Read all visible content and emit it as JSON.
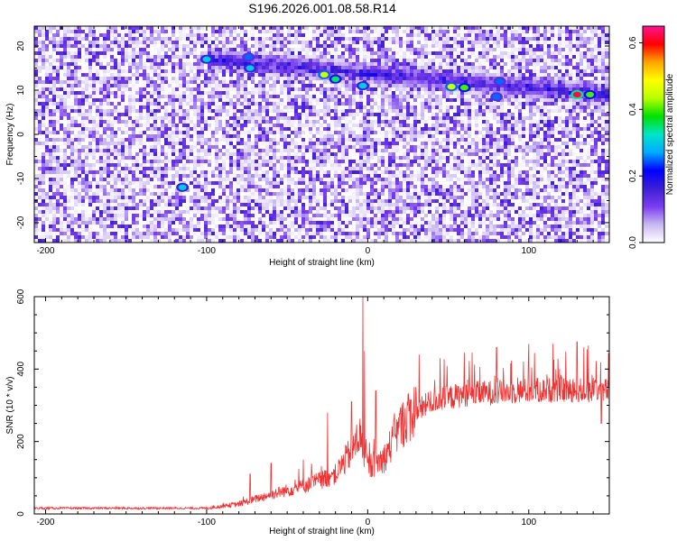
{
  "figure_title": "S196.2026.001.08.58.R14",
  "chart_data": [
    {
      "type": "heatmap",
      "title": "S196.2026.001.08.58.R14",
      "xlabel": "Height of straight line (km)",
      "ylabel": "Frequency (Hz)",
      "xlim": [
        -207,
        150
      ],
      "ylim": [
        -24.5,
        24.5
      ],
      "xticks": [
        -200,
        -100,
        0,
        100
      ],
      "yticks": [
        -20,
        -10,
        0,
        10,
        20
      ],
      "colorbar": {
        "label": "Normalized spectral amplitude",
        "range": [
          0.0,
          0.65
        ],
        "ticks": [
          0.0,
          0.2,
          0.4,
          0.6
        ],
        "colormap": [
          "#ffffff",
          "#c9b8f3",
          "#7a3cf0",
          "#3c1fd6",
          "#0000ff",
          "#00aaff",
          "#00e5c8",
          "#00e000",
          "#b8ff00",
          "#ffff00",
          "#ffa500",
          "#ff0000",
          "#ff1493"
        ]
      },
      "signal_track": {
        "start_km": -100,
        "end_km": 150,
        "freq_start_hz": 17,
        "freq_end_hz": 9,
        "hotspots": [
          {
            "x": -100,
            "y": 17,
            "a": 0.3
          },
          {
            "x": -73,
            "y": 15,
            "a": 0.3
          },
          {
            "x": -74,
            "y": 17.5,
            "a": 0.25
          },
          {
            "x": -27,
            "y": 13.5,
            "a": 0.45
          },
          {
            "x": -20,
            "y": 12.5,
            "a": 0.35
          },
          {
            "x": -3,
            "y": 11,
            "a": 0.3
          },
          {
            "x": 52,
            "y": 10.8,
            "a": 0.45
          },
          {
            "x": 60,
            "y": 10.6,
            "a": 0.4
          },
          {
            "x": 80,
            "y": 8.5,
            "a": 0.25
          },
          {
            "x": 82,
            "y": 12,
            "a": 0.25
          },
          {
            "x": 130,
            "y": 9,
            "a": 0.62
          },
          {
            "x": 138,
            "y": 9,
            "a": 0.4
          },
          {
            "x": -115,
            "y": -12,
            "a": 0.3
          }
        ]
      }
    },
    {
      "type": "line",
      "xlabel": "Height of straight line (km)",
      "ylabel": "SNR (10 * v/v)",
      "xlim": [
        -207,
        150
      ],
      "ylim": [
        0,
        600
      ],
      "xticks": [
        -200,
        -100,
        0,
        100
      ],
      "yticks": [
        0,
        200,
        400,
        600
      ],
      "series": [
        {
          "name": "SNR",
          "color": "#ee3333",
          "baseline_x": [
            -207,
            -100,
            -80,
            -60,
            -40,
            -20,
            -10,
            -5,
            0,
            10,
            20,
            30,
            40,
            60,
            80,
            100,
            120,
            150
          ],
          "baseline_y": [
            15,
            15,
            25,
            50,
            70,
            100,
            160,
            200,
            120,
            140,
            220,
            270,
            300,
            320,
            325,
            330,
            332,
            330
          ],
          "peaks": [
            {
              "x": -73,
              "y": 110
            },
            {
              "x": -60,
              "y": 140
            },
            {
              "x": -40,
              "y": 150
            },
            {
              "x": -25,
              "y": 280
            },
            {
              "x": -10,
              "y": 310
            },
            {
              "x": -3,
              "y": 600
            },
            {
              "x": -2,
              "y": 450
            },
            {
              "x": 5,
              "y": 340
            },
            {
              "x": 32,
              "y": 440
            },
            {
              "x": 45,
              "y": 430
            },
            {
              "x": 60,
              "y": 445
            },
            {
              "x": 80,
              "y": 460
            },
            {
              "x": 100,
              "y": 470
            },
            {
              "x": 115,
              "y": 470
            },
            {
              "x": 130,
              "y": 475
            },
            {
              "x": 137,
              "y": 465
            }
          ],
          "trough": {
            "x": 145,
            "y": 250
          }
        }
      ]
    }
  ]
}
